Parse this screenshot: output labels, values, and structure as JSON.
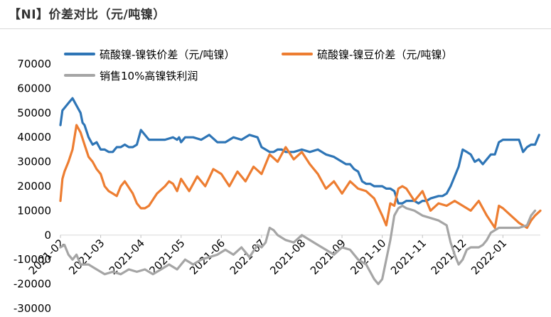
{
  "page_title": "【NI】价差对比（元/吨镍）",
  "chart_data": {
    "type": "line",
    "title": "【NI】价差对比（元/吨镍）",
    "xlabel": "",
    "ylabel": "",
    "ylim": [
      -30000,
      70000
    ],
    "ytick_step": 10000,
    "ytick_labels": [
      "-30000",
      "-20000",
      "-10000",
      "0",
      "10000",
      "20000",
      "30000",
      "40000",
      "50000",
      "60000",
      "70000"
    ],
    "xlim": [
      0,
      11.93
    ],
    "x_unit": "months since 2021-02",
    "categories": [
      "2021-02",
      "2021-03",
      "2021-04",
      "2021-05",
      "2021-06",
      "2021-07",
      "2021-08",
      "2021-09",
      "2021-10",
      "2021-11",
      "2021-12",
      "2022-01"
    ],
    "legend_position": "top",
    "series": [
      {
        "name": "硫酸镍-镍铁价差（元/吨镍）",
        "color": "#2E75B6",
        "x": [
          0.0,
          0.05,
          0.1,
          0.2,
          0.3,
          0.4,
          0.5,
          0.55,
          0.6,
          0.7,
          0.8,
          0.9,
          1.0,
          1.1,
          1.2,
          1.3,
          1.4,
          1.5,
          1.6,
          1.7,
          1.8,
          1.9,
          2.0,
          2.2,
          2.4,
          2.6,
          2.8,
          2.9,
          2.95,
          3.0,
          3.1,
          3.3,
          3.5,
          3.7,
          3.9,
          4.1,
          4.3,
          4.5,
          4.7,
          4.9,
          5.0,
          5.1,
          5.2,
          5.3,
          5.4,
          5.5,
          5.6,
          5.8,
          6.0,
          6.2,
          6.4,
          6.6,
          6.8,
          7.0,
          7.1,
          7.2,
          7.3,
          7.4,
          7.5,
          7.6,
          7.7,
          7.8,
          7.9,
          8.0,
          8.1,
          8.2,
          8.3,
          8.4,
          8.5,
          8.6,
          8.7,
          8.8,
          8.9,
          9.0,
          9.1,
          9.2,
          9.4,
          9.5,
          9.6,
          9.7,
          9.8,
          9.9,
          10.0,
          10.1,
          10.2,
          10.3,
          10.4,
          10.5,
          10.6,
          10.7,
          10.8,
          10.9,
          11.0,
          11.2,
          11.4,
          11.5,
          11.6,
          11.7,
          11.8,
          11.9
        ],
        "values": [
          45000,
          51000,
          52000,
          54000,
          56000,
          53000,
          50000,
          46000,
          45000,
          40000,
          37000,
          38000,
          35000,
          35000,
          34000,
          34000,
          36000,
          36000,
          37000,
          36000,
          36000,
          37000,
          43000,
          39000,
          39000,
          39000,
          40000,
          39000,
          40000,
          38000,
          40000,
          40000,
          39000,
          41000,
          38000,
          38000,
          40000,
          39000,
          41000,
          40000,
          36000,
          35000,
          34000,
          34000,
          35000,
          35000,
          34000,
          34000,
          35000,
          34000,
          35000,
          33000,
          32000,
          30000,
          29000,
          29000,
          27000,
          26000,
          22000,
          21000,
          21000,
          20000,
          20000,
          20000,
          19000,
          19000,
          18000,
          13000,
          13000,
          14000,
          14000,
          14000,
          13000,
          14000,
          14000,
          15000,
          16000,
          16000,
          17000,
          20000,
          24000,
          28000,
          35000,
          34000,
          33000,
          30000,
          31000,
          29000,
          31000,
          33000,
          33000,
          38000,
          39000,
          39000,
          39000,
          34000,
          36000,
          37000,
          37000,
          41000
        ]
      },
      {
        "name": "硫酸镍-镍豆价差（元/吨镍）",
        "color": "#ED7D31",
        "x": [
          0.0,
          0.05,
          0.1,
          0.2,
          0.3,
          0.4,
          0.5,
          0.6,
          0.7,
          0.8,
          0.9,
          1.0,
          1.1,
          1.2,
          1.3,
          1.4,
          1.5,
          1.6,
          1.8,
          1.9,
          2.0,
          2.1,
          2.2,
          2.4,
          2.6,
          2.7,
          2.8,
          2.9,
          3.0,
          3.2,
          3.4,
          3.6,
          3.8,
          4.0,
          4.2,
          4.4,
          4.6,
          4.8,
          5.0,
          5.2,
          5.4,
          5.6,
          5.8,
          6.0,
          6.2,
          6.4,
          6.6,
          6.8,
          7.0,
          7.2,
          7.4,
          7.6,
          7.8,
          8.0,
          8.1,
          8.2,
          8.3,
          8.4,
          8.5,
          8.6,
          8.8,
          9.0,
          9.2,
          9.4,
          9.6,
          9.8,
          10.0,
          10.2,
          10.4,
          10.6,
          10.8,
          10.9,
          11.0,
          11.2,
          11.4,
          11.6,
          11.7,
          11.8,
          11.93
        ],
        "values": [
          14000,
          23000,
          26000,
          30000,
          35000,
          45000,
          42000,
          37000,
          32000,
          30000,
          27000,
          25000,
          20000,
          18000,
          17000,
          16000,
          20000,
          22000,
          17000,
          13000,
          11000,
          11000,
          12000,
          17000,
          20000,
          22000,
          21000,
          18000,
          23000,
          18000,
          24000,
          20000,
          27000,
          25000,
          20000,
          26000,
          22000,
          28000,
          25000,
          33000,
          30000,
          36000,
          31000,
          34000,
          29000,
          25000,
          19000,
          22000,
          17000,
          22000,
          19000,
          18000,
          15000,
          8000,
          4000,
          13000,
          12000,
          19000,
          20000,
          19000,
          14000,
          18000,
          10000,
          13000,
          12000,
          14000,
          12000,
          10000,
          14000,
          8000,
          3000,
          12000,
          11000,
          8000,
          5000,
          3000,
          6000,
          8000,
          10000
        ]
      },
      {
        "name": "销售10%高镍铁利润",
        "color": "#A5A5A5",
        "x": [
          0.0,
          0.1,
          0.2,
          0.3,
          0.4,
          0.5,
          0.7,
          0.9,
          1.1,
          1.3,
          1.5,
          1.7,
          1.9,
          2.1,
          2.3,
          2.5,
          2.7,
          2.9,
          3.1,
          3.3,
          3.5,
          3.7,
          3.9,
          4.1,
          4.3,
          4.5,
          4.7,
          4.9,
          5.0,
          5.1,
          5.2,
          5.3,
          5.4,
          5.6,
          5.8,
          6.0,
          6.2,
          6.4,
          6.6,
          6.8,
          7.0,
          7.2,
          7.4,
          7.6,
          7.8,
          7.9,
          8.0,
          8.1,
          8.2,
          8.3,
          8.4,
          8.5,
          8.6,
          8.8,
          9.0,
          9.2,
          9.4,
          9.6,
          9.7,
          9.8,
          9.9,
          10.0,
          10.1,
          10.2,
          10.4,
          10.5,
          10.6,
          10.7,
          10.8,
          10.9,
          11.0,
          11.2,
          11.4,
          11.6,
          11.7,
          11.8
        ],
        "values": [
          -5000,
          -4000,
          -8000,
          -10000,
          -8000,
          -12000,
          -12000,
          -14000,
          -16000,
          -15000,
          -16000,
          -14000,
          -15000,
          -14000,
          -16000,
          -14000,
          -12000,
          -14000,
          -10000,
          -12000,
          -10000,
          -9000,
          -8000,
          -6000,
          -8000,
          -5000,
          -9000,
          -4000,
          -5000,
          -3000,
          3000,
          2000,
          0,
          -2000,
          -3000,
          0,
          -2000,
          -4000,
          -6000,
          -8000,
          -5000,
          -6000,
          -10000,
          -12000,
          -18000,
          -20000,
          -18000,
          -10000,
          -2000,
          8000,
          11000,
          12000,
          11000,
          10000,
          8000,
          7000,
          6000,
          4000,
          -3000,
          -8000,
          -12000,
          -10000,
          -6000,
          -5000,
          -5000,
          -4000,
          -2000,
          1000,
          2000,
          3000,
          3000,
          3000,
          3000,
          4000,
          8000,
          10000
        ]
      }
    ]
  }
}
